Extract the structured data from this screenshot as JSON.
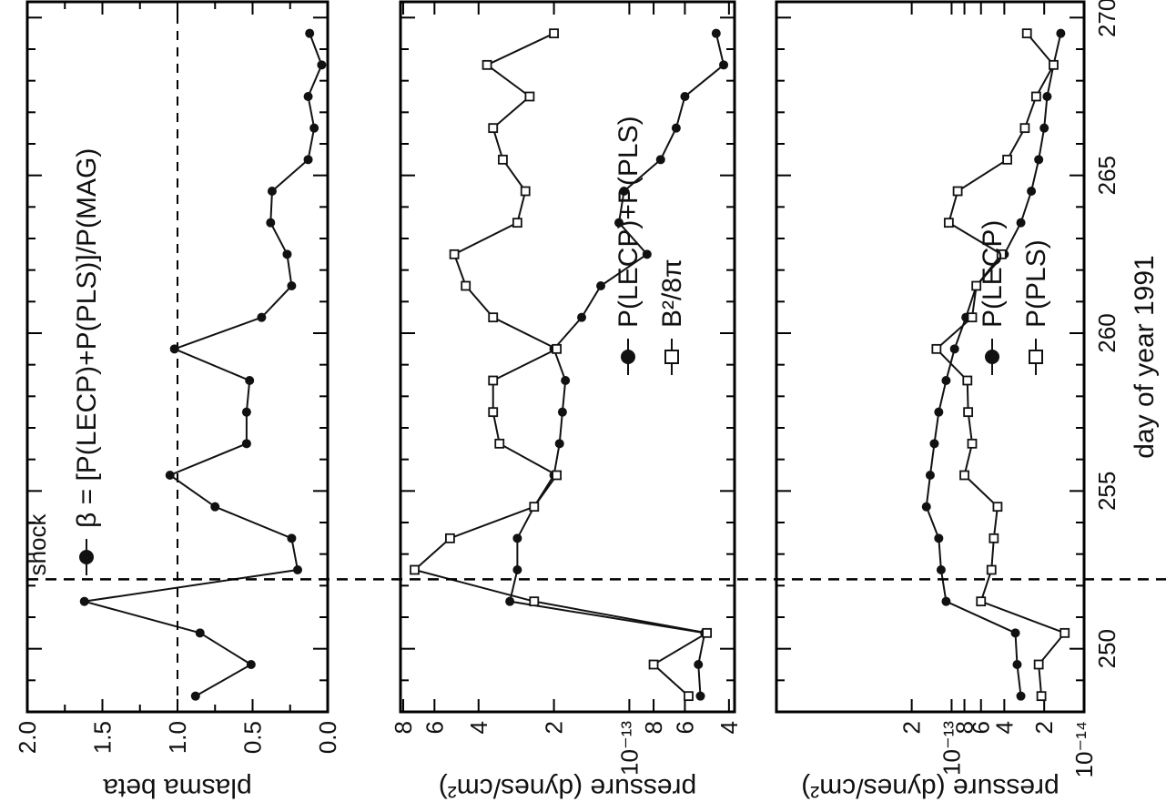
{
  "chart_data": [
    {
      "type": "line",
      "panel": "top",
      "ylabel": "plasma beta",
      "xlabel": "",
      "ylim": [
        0,
        2
      ],
      "xlim": [
        248,
        270.5
      ],
      "yticks": [
        0.0,
        0.5,
        1.0,
        1.5,
        2.0
      ],
      "ytick_labels": [
        "0.0",
        "0.5",
        "1.0",
        "1.5",
        "2.0"
      ],
      "reference_line_y": 1.0,
      "shock_day": 252.2,
      "shock_label": "shock",
      "legend": [
        {
          "marker": "filled-circle",
          "label": "β = [P(LECP)+P(PLS)]/P(MAG)"
        }
      ],
      "series": [
        {
          "name": "β = [P(LECP)+P(PLS)]/P(MAG)",
          "marker": "filled-circle",
          "x": [
            248.5,
            249.5,
            250.5,
            251.5,
            252.5,
            253.5,
            254.5,
            255.5,
            256.5,
            257.5,
            258.5,
            259.5,
            260.5,
            261.5,
            262.5,
            263.5,
            264.5,
            265.5,
            266.5,
            267.5,
            268.5,
            269.5
          ],
          "y": [
            0.88,
            0.51,
            0.85,
            1.62,
            0.2,
            0.24,
            0.75,
            1.05,
            0.54,
            0.54,
            0.52,
            1.02,
            0.44,
            0.24,
            0.27,
            0.38,
            0.37,
            0.13,
            0.09,
            0.13,
            0.04,
            0.12
          ]
        }
      ]
    },
    {
      "type": "line",
      "panel": "middle",
      "ylabel": "pressure (dynes/cm²)",
      "xlabel": "",
      "yscale": "log",
      "ylim": [
        3.8e-13,
        8.2e-12
      ],
      "ytick_labels": [
        "4",
        "6",
        "8",
        "10⁻¹³",
        "2",
        "4",
        "6",
        "8"
      ],
      "legend": [
        {
          "marker": "filled-circle",
          "label": "P(LECP)+P(PLS)"
        },
        {
          "marker": "open-square",
          "label": "B²/8π"
        }
      ],
      "series": [
        {
          "name": "P(LECP)+P(PLS)",
          "marker": "filled-circle",
          "x": [
            248.5,
            249.5,
            250.5,
            251.5,
            252.5,
            253.5,
            254.5,
            255.5,
            256.5,
            257.5,
            258.5,
            259.5,
            260.5,
            261.5,
            262.5,
            263.5,
            264.5,
            265.5,
            266.5,
            267.5,
            268.5,
            269.5
          ],
          "y": [
            5.2e-13,
            5.3e-13,
            5e-13,
            3e-12,
            2.8e-12,
            2.8e-12,
            2.4e-12,
            2e-12,
            1.9e-12,
            1.85e-12,
            1.8e-12,
            2e-12,
            1.55e-12,
            1.3e-12,
            8.5e-13,
            1.1e-12,
            1.05e-12,
            7.5e-13,
            6.5e-13,
            6e-13,
            4.2e-13,
            4.5e-13
          ]
        },
        {
          "name": "B²/8π",
          "marker": "open-square",
          "x": [
            248.5,
            249.5,
            250.5,
            251.5,
            252.5,
            253.5,
            254.5,
            255.5,
            256.5,
            257.5,
            258.5,
            259.5,
            260.5,
            261.5,
            262.5,
            263.5,
            264.5,
            265.5,
            266.5,
            267.5,
            268.5,
            269.5
          ],
          "y": [
            5.8e-13,
            8e-13,
            4.9e-13,
            2.4e-12,
            7.2e-12,
            5.2e-12,
            2.4e-12,
            1.95e-12,
            3.3e-12,
            3.5e-12,
            3.5e-12,
            1.95e-12,
            3.5e-12,
            4.5e-12,
            5e-12,
            2.8e-12,
            2.6e-12,
            3.2e-12,
            3.5e-12,
            2.5e-12,
            3.7e-12,
            2e-12
          ]
        }
      ]
    },
    {
      "type": "line",
      "panel": "bottom",
      "ylabel": "pressure (dynes/cm²)",
      "xlabel": "day of year 1991",
      "yscale": "log",
      "ylim": [
        1e-14,
        2.1e-12
      ],
      "xticks": [
        250,
        255,
        260,
        265,
        270
      ],
      "xtick_labels": [
        "250",
        "255",
        "260",
        "265",
        "270"
      ],
      "ytick_labels": [
        "10⁻¹⁴",
        "2",
        "4",
        "6",
        "8",
        "10⁻¹³",
        "2"
      ],
      "legend": [
        {
          "marker": "filled-circle",
          "label": "P(LECP)"
        },
        {
          "marker": "open-square",
          "label": "P(PLS)"
        }
      ],
      "series": [
        {
          "name": "P(LECP)",
          "marker": "filled-circle",
          "x": [
            248.5,
            249.5,
            250.5,
            251.5,
            252.5,
            253.5,
            254.5,
            255.5,
            256.5,
            257.5,
            258.5,
            259.5,
            260.5,
            261.5,
            262.5,
            263.5,
            264.5,
            265.5,
            266.5,
            267.5,
            268.5,
            269.5
          ],
          "y": [
            3e-14,
            3.2e-14,
            3.3e-14,
            1.1e-13,
            1.2e-13,
            1.25e-13,
            1.55e-13,
            1.45e-13,
            1.35e-13,
            1.25e-13,
            1.1e-13,
            9.5e-14,
            7.8e-14,
            6.5e-14,
            4e-14,
            3e-14,
            2.5e-14,
            2.2e-14,
            2e-14,
            1.9e-14,
            1.7e-14,
            1.5e-14
          ]
        },
        {
          "name": "P(PLS)",
          "marker": "open-square",
          "x": [
            248.5,
            249.5,
            250.5,
            251.5,
            252.5,
            253.5,
            254.5,
            255.5,
            256.5,
            257.5,
            258.5,
            259.5,
            260.5,
            261.5,
            262.5,
            263.5,
            264.5,
            265.5,
            266.5,
            267.5,
            268.5,
            269.5
          ],
          "y": [
            2.1e-14,
            2.2e-14,
            1.4e-14,
            6e-14,
            5e-14,
            4.8e-14,
            4.5e-14,
            8e-14,
            7e-14,
            7.5e-14,
            7.6e-14,
            1.3e-13,
            7e-14,
            6.5e-14,
            4.2e-14,
            1.05e-13,
            9e-14,
            3.8e-14,
            2.8e-14,
            2.3e-14,
            1.7e-14,
            2.7e-14
          ]
        }
      ]
    }
  ]
}
